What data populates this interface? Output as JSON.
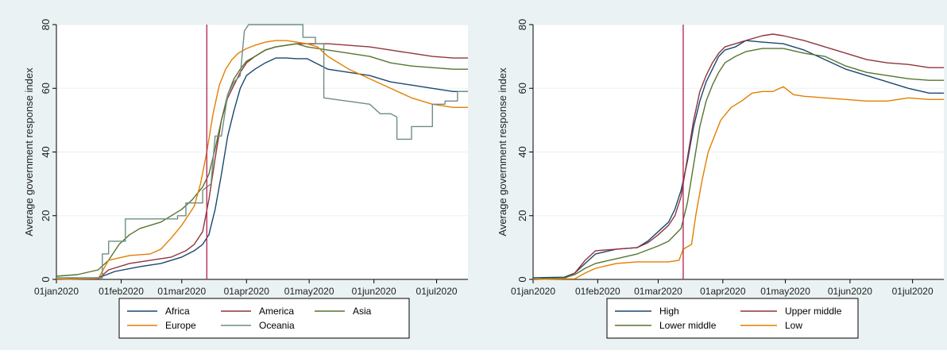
{
  "colors": {
    "background": "#eaf2f3",
    "plot_background": "#ffffff",
    "grid": "#eaf2f3",
    "vline": "#b5305a",
    "axis_text": "#222222"
  },
  "chart_data": [
    {
      "type": "line",
      "title": "",
      "xlabel": "",
      "ylabel": "Average government response index",
      "x_ticks": [
        "01jan2020",
        "01feb2020",
        "01mar2020",
        "01apr2020",
        "01may2020",
        "01jun2020",
        "01jul2020"
      ],
      "x_tick_days": [
        0,
        31,
        60,
        91,
        121,
        152,
        182
      ],
      "x_range_days": [
        0,
        197
      ],
      "y_ticks": [
        0,
        20,
        40,
        60,
        80
      ],
      "ylim": [
        0,
        80
      ],
      "grid": true,
      "vline_date": "13mar2020",
      "vline_day": 72,
      "legend": {
        "placement": "bottom",
        "columns": 3
      },
      "series": [
        {
          "name": "Africa",
          "color": "#1a476f",
          "x": [
            0,
            20,
            28,
            40,
            50,
            60,
            66,
            70,
            73,
            76,
            79,
            82,
            85,
            88,
            91,
            95,
            100,
            105,
            110,
            115,
            120,
            130,
            140,
            150,
            160,
            170,
            180,
            190,
            197
          ],
          "y": [
            0,
            0.5,
            2.5,
            4,
            5,
            7,
            9,
            11,
            14,
            22,
            33,
            45,
            53,
            60,
            64,
            66,
            68,
            69.5,
            69.5,
            69.3,
            69.3,
            66,
            65,
            64,
            62,
            61,
            60,
            59,
            59
          ]
        },
        {
          "name": "America",
          "color": "#90353b",
          "x": [
            0,
            20,
            25,
            35,
            45,
            55,
            62,
            66,
            70,
            73,
            76,
            79,
            82,
            85,
            88,
            91,
            95,
            100,
            105,
            110,
            115,
            120,
            130,
            140,
            150,
            160,
            170,
            180,
            190,
            197
          ],
          "y": [
            0,
            0.2,
            3,
            5,
            6,
            7,
            9,
            11,
            15,
            25,
            38,
            50,
            57,
            61,
            65,
            68,
            70,
            72,
            73,
            73.5,
            74,
            74,
            74,
            73.5,
            73,
            72,
            71,
            70,
            69.5,
            69.5
          ]
        },
        {
          "name": "Asia",
          "color": "#55752f",
          "x": [
            0,
            10,
            20,
            25,
            30,
            35,
            40,
            50,
            55,
            60,
            65,
            70,
            73,
            76,
            79,
            82,
            85,
            88,
            91,
            95,
            100,
            105,
            110,
            115,
            120,
            130,
            140,
            150,
            160,
            170,
            180,
            190,
            197
          ],
          "y": [
            1,
            1.5,
            3,
            6,
            11,
            14,
            16,
            18,
            20,
            22,
            25,
            29,
            33,
            41,
            50,
            58,
            63,
            66,
            68.5,
            70,
            72,
            73,
            73.5,
            74,
            73,
            72,
            71,
            70,
            68,
            67,
            66.5,
            66,
            66
          ]
        },
        {
          "name": "Europe",
          "color": "#e37e00",
          "x": [
            0,
            20,
            25,
            35,
            45,
            50,
            55,
            60,
            63,
            66,
            69,
            72,
            75,
            78,
            81,
            84,
            87,
            91,
            95,
            100,
            105,
            110,
            115,
            120,
            125,
            130,
            140,
            150,
            160,
            170,
            180,
            190,
            197
          ],
          "y": [
            0,
            0.3,
            6,
            7.5,
            8,
            9.5,
            13,
            17,
            20,
            23,
            30,
            40,
            52,
            61,
            66,
            69,
            71,
            72.5,
            73.5,
            74.5,
            75,
            75,
            74.5,
            74,
            73,
            70,
            66,
            63,
            60,
            57,
            55,
            54,
            54
          ]
        },
        {
          "name": "Oceania",
          "color": "#6e8e84",
          "x": [
            0,
            22,
            22,
            25,
            25,
            33,
            33,
            58,
            58,
            62,
            62,
            70,
            70,
            74,
            76,
            79,
            82,
            85,
            88,
            90,
            92,
            95,
            100,
            105,
            110,
            118,
            118,
            124,
            124,
            128,
            128,
            150,
            155,
            160,
            163,
            163,
            170,
            170,
            175,
            175,
            180,
            180,
            186,
            186,
            192,
            192,
            197
          ],
          "y": [
            0.5,
            0.5,
            8,
            8,
            12,
            12,
            19,
            19,
            20,
            20,
            24,
            24,
            28,
            30,
            45,
            45,
            58,
            62,
            64,
            78,
            80,
            80,
            80,
            80,
            80,
            80,
            76,
            76,
            74,
            74,
            57,
            55,
            52,
            52,
            51,
            44,
            44,
            48,
            48,
            48,
            48,
            55,
            55,
            56,
            56,
            59,
            59
          ]
        }
      ]
    },
    {
      "type": "line",
      "title": "",
      "xlabel": "",
      "ylabel": "Average government response index",
      "x_ticks": [
        "01jan2020",
        "01feb2020",
        "01mar2020",
        "01apr2020",
        "01may2020",
        "01jun2020",
        "01jul2020"
      ],
      "x_tick_days": [
        0,
        31,
        60,
        91,
        121,
        152,
        182
      ],
      "x_range_days": [
        0,
        197
      ],
      "y_ticks": [
        0,
        20,
        40,
        60,
        80
      ],
      "ylim": [
        0,
        80
      ],
      "grid": true,
      "vline_date": "13mar2020",
      "vline_day": 72,
      "legend": {
        "placement": "bottom",
        "columns": 2
      },
      "series": [
        {
          "name": "High",
          "color": "#1a476f",
          "x": [
            0,
            15,
            20,
            25,
            30,
            40,
            50,
            55,
            60,
            65,
            68,
            71,
            74,
            77,
            80,
            83,
            86,
            89,
            92,
            97,
            102,
            110,
            120,
            130,
            140,
            150,
            160,
            170,
            180,
            190,
            197
          ],
          "y": [
            0.5,
            0.7,
            2,
            5,
            8,
            9.5,
            10,
            12,
            15,
            18,
            22,
            28,
            37,
            48,
            56,
            62,
            66,
            70,
            72,
            73,
            75,
            74.5,
            74,
            72,
            69,
            66,
            64,
            62,
            60,
            58.5,
            58.5
          ]
        },
        {
          "name": "Upper middle",
          "color": "#90353b",
          "x": [
            0,
            15,
            20,
            25,
            30,
            40,
            50,
            55,
            60,
            65,
            68,
            71,
            74,
            77,
            80,
            83,
            86,
            89,
            92,
            97,
            102,
            110,
            115,
            120,
            130,
            140,
            150,
            160,
            170,
            180,
            190,
            197
          ],
          "y": [
            0,
            0.3,
            2,
            6,
            9,
            9.5,
            10,
            11.5,
            14,
            17,
            20,
            26,
            38,
            50,
            59,
            64,
            68,
            71,
            73,
            74,
            75,
            76.5,
            77,
            76.5,
            75,
            73,
            71,
            69,
            68,
            67.5,
            66.5,
            66.5
          ]
        },
        {
          "name": "Lower middle",
          "color": "#55752f",
          "x": [
            0,
            15,
            20,
            25,
            30,
            40,
            50,
            60,
            65,
            68,
            71,
            74,
            77,
            80,
            83,
            86,
            89,
            92,
            97,
            102,
            110,
            120,
            130,
            140,
            150,
            160,
            170,
            180,
            190,
            197
          ],
          "y": [
            0,
            0.5,
            1.5,
            3.5,
            5,
            6.5,
            8,
            10.5,
            12,
            14,
            16,
            24,
            36,
            48,
            56,
            61,
            65,
            68,
            70,
            71.5,
            72.5,
            72.5,
            71,
            70,
            67,
            65,
            64,
            63,
            62.5,
            62.5
          ]
        },
        {
          "name": "Low",
          "color": "#e37e00",
          "x": [
            0,
            20,
            25,
            30,
            40,
            50,
            60,
            65,
            70,
            72,
            76,
            78,
            81,
            84,
            87,
            90,
            95,
            100,
            105,
            110,
            115,
            120,
            125,
            130,
            140,
            150,
            160,
            170,
            180,
            190,
            197
          ],
          "y": [
            0,
            0.2,
            2,
            3.5,
            5,
            5.5,
            5.5,
            5.5,
            6,
            9.5,
            11,
            20,
            31,
            40,
            45,
            50,
            54,
            56,
            58.5,
            59,
            59,
            60.5,
            58,
            57.5,
            57,
            56.5,
            56,
            56,
            57,
            56.5,
            56.5
          ]
        }
      ]
    }
  ]
}
